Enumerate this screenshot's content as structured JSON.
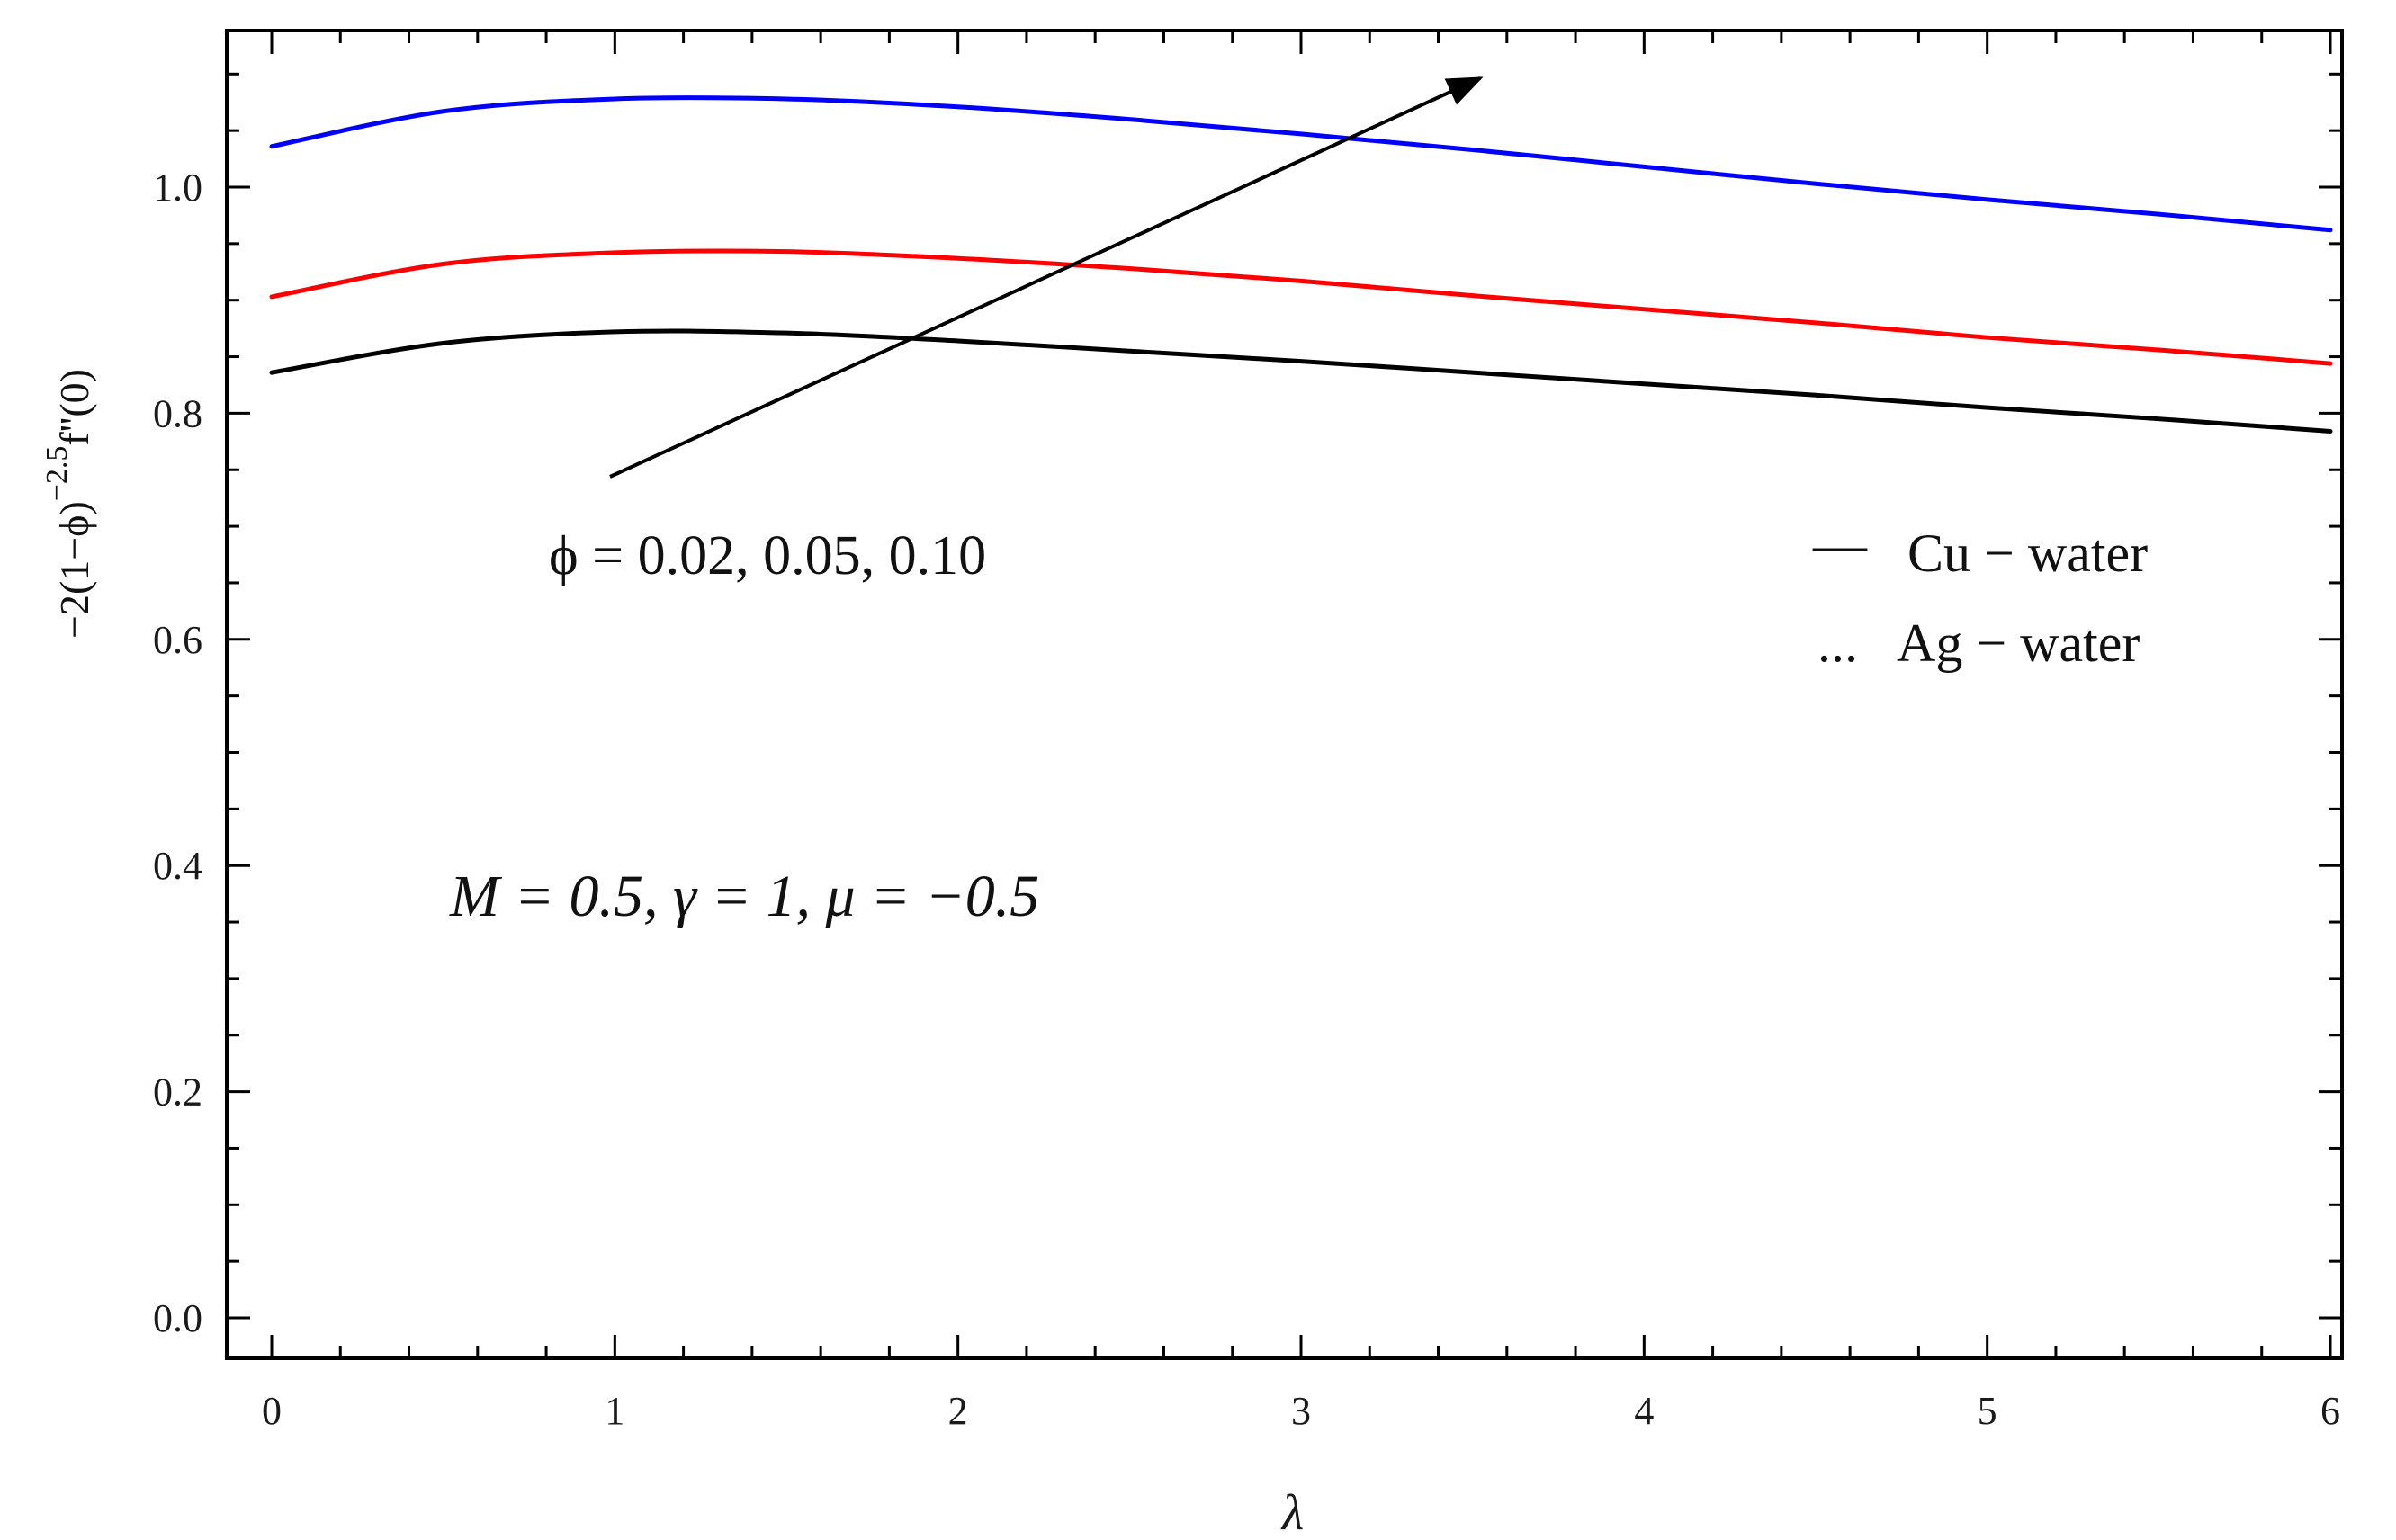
{
  "chart_data": {
    "type": "line",
    "title": "",
    "xlabel": "λ",
    "ylabel": "-2(1-ϕ)^(-2.5) f''(0)",
    "ylabel_parts": {
      "main": "−2(1−ϕ)",
      "exp": "−2.5",
      "tail": "f''(0)"
    },
    "xlim": [
      0,
      6
    ],
    "ylim": [
      0,
      1.1
    ],
    "x_ticks": [
      0,
      1,
      2,
      3,
      4,
      5,
      6
    ],
    "x_tick_labels": [
      "0",
      "1",
      "2",
      "3",
      "4",
      "5",
      "6"
    ],
    "y_ticks": [
      0.0,
      0.2,
      0.4,
      0.6,
      0.8,
      1.0
    ],
    "y_tick_labels": [
      "0.0",
      "0.2",
      "0.4",
      "0.6",
      "0.8",
      "1.0"
    ],
    "grid": false,
    "x": [
      0,
      0.5,
      1,
      1.5,
      2,
      2.5,
      3,
      3.5,
      4,
      4.5,
      5,
      5.5,
      6
    ],
    "series": [
      {
        "color": "#000000",
        "values": [
          0.836,
          0.862,
          0.872,
          0.871,
          0.864,
          0.855,
          0.846,
          0.836,
          0.826,
          0.816,
          0.805,
          0.795,
          0.784
        ]
      },
      {
        "color": "#ff0000",
        "values": [
          0.903,
          0.932,
          0.942,
          0.943,
          0.937,
          0.928,
          0.917,
          0.904,
          0.892,
          0.88,
          0.867,
          0.856,
          0.844
        ]
      },
      {
        "color": "#0000ff",
        "values": [
          1.036,
          1.067,
          1.078,
          1.078,
          1.071,
          1.06,
          1.047,
          1.033,
          1.018,
          1.003,
          0.989,
          0.976,
          0.962
        ]
      }
    ],
    "annotations": {
      "phi_label": "ϕ = 0.02, 0.05, 0.10",
      "params_label": "M = 0.5, γ = 1, μ = −0.5",
      "legend": [
        {
          "marker": "—",
          "label": "Cu − water"
        },
        {
          "marker": "...",
          "label": "Ag − water"
        }
      ]
    },
    "colors": {
      "axis": "#000000",
      "tick_label": "#1a1a1a",
      "ylabel": "#2b2b3a"
    }
  }
}
